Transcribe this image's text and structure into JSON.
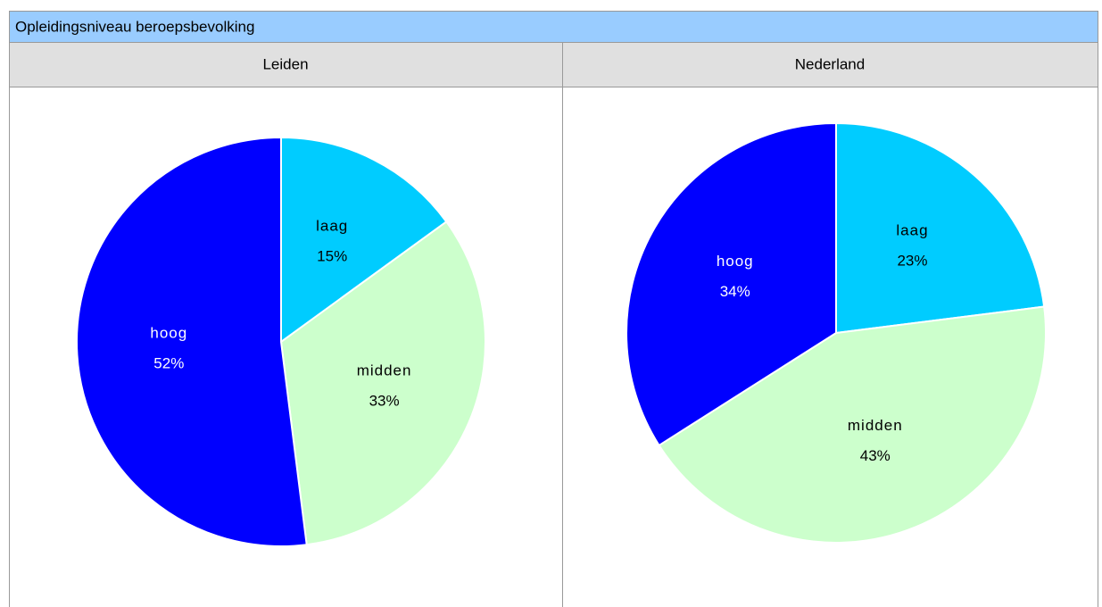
{
  "header": {
    "title": "Opleidingsniveau beroepsbevolking"
  },
  "chart_data": [
    {
      "type": "pie",
      "title": "Leiden",
      "categories": [
        "laag",
        "midden",
        "hoog"
      ],
      "values": [
        15,
        33,
        52
      ],
      "value_labels": [
        "15%",
        "33%",
        "52%"
      ],
      "colors": [
        "#00ccff",
        "#ccffcc",
        "#0000ff"
      ]
    },
    {
      "type": "pie",
      "title": "Nederland",
      "categories": [
        "laag",
        "midden",
        "hoog"
      ],
      "values": [
        23,
        43,
        34
      ],
      "value_labels": [
        "23%",
        "43%",
        "34%"
      ],
      "colors": [
        "#00ccff",
        "#ccffcc",
        "#0000ff"
      ]
    }
  ]
}
